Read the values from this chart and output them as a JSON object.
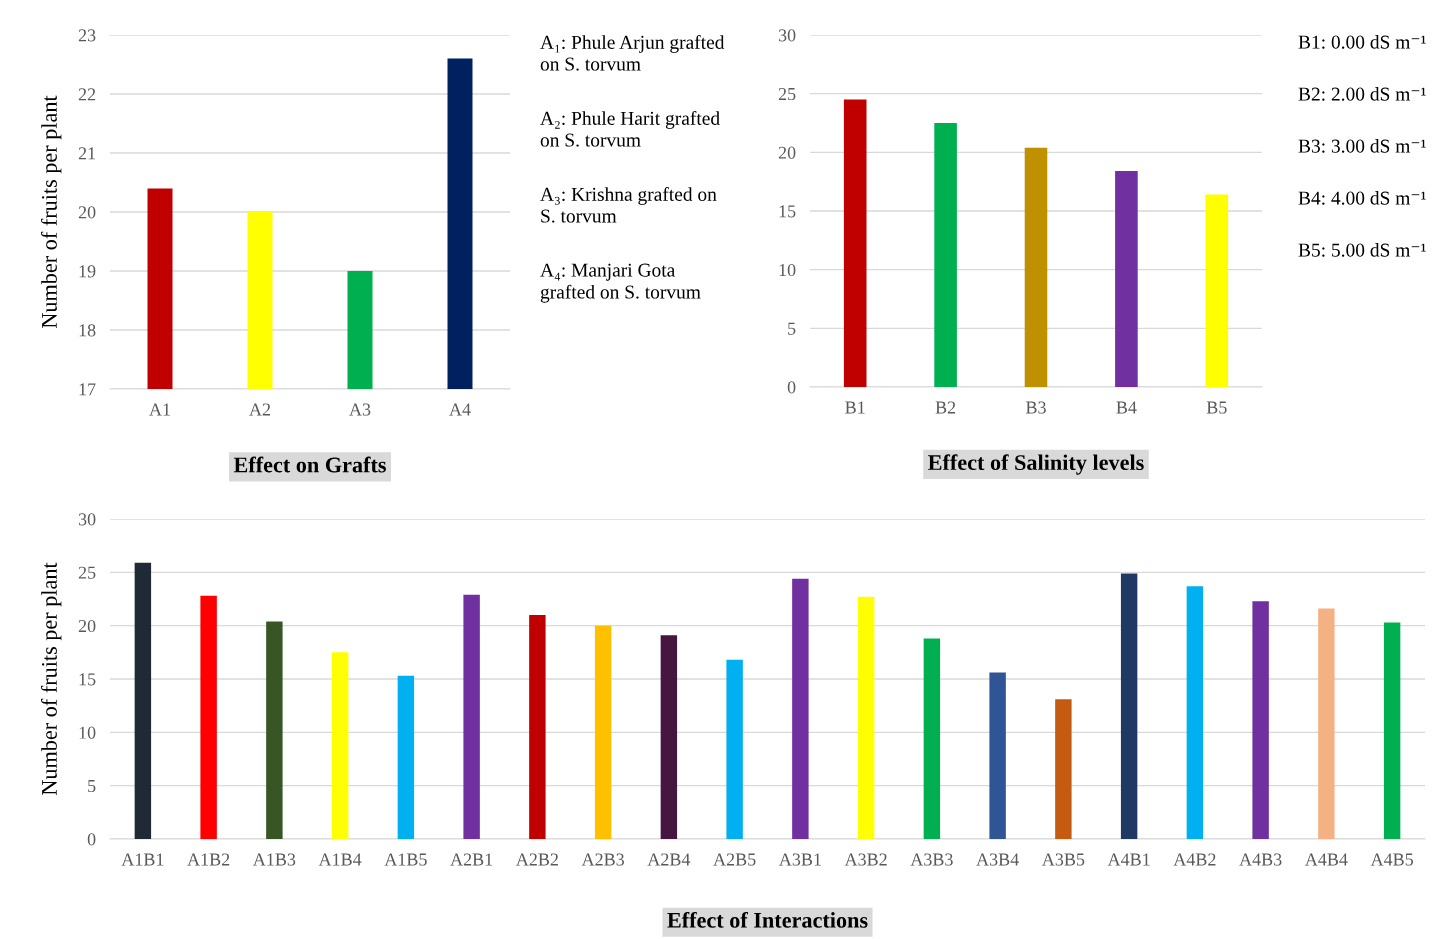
{
  "chart_data": [
    {
      "type": "bar",
      "title": "Effect on Grafts",
      "ylabel": "Number of fruits per plant",
      "categories": [
        "A1",
        "A2",
        "A3",
        "A4"
      ],
      "values": [
        20.4,
        20.0,
        19.0,
        22.6
      ],
      "colors": [
        "#c00000",
        "#ffff00",
        "#00b050",
        "#002060"
      ],
      "ylim": [
        17,
        23
      ],
      "yticks": [
        17,
        18,
        19,
        20,
        21,
        22,
        23
      ],
      "grid": "y",
      "annotations": [
        "A₁: Phule Arjun grafted\non S. torvum",
        "A₂: Phule Harit grafted\non S. torvum",
        "A₃: Krishna grafted on\nS. torvum",
        "A₄: Manjari Gota\ngrafted on S. torvum"
      ]
    },
    {
      "type": "bar",
      "title": "Effect of Salinity levels",
      "categories": [
        "B1",
        "B2",
        "B3",
        "B4",
        "B5"
      ],
      "values": [
        24.5,
        22.5,
        20.4,
        18.4,
        16.4
      ],
      "colors": [
        "#c00000",
        "#00b050",
        "#bf9000",
        "#7030a0",
        "#ffff00"
      ],
      "ylim": [
        0,
        30
      ],
      "yticks": [
        0,
        5,
        10,
        15,
        20,
        25,
        30
      ],
      "grid": "y",
      "annotations": [
        "B1: 0.00 dS m⁻¹",
        "B2: 2.00 dS m⁻¹",
        "B3: 3.00 dS m⁻¹",
        "B4: 4.00 dS m⁻¹",
        "B5: 5.00 dS m⁻¹"
      ]
    },
    {
      "type": "bar",
      "title": "Effect of Interactions",
      "ylabel": "Number of fruits per plant",
      "categories": [
        "A1B1",
        "A1B2",
        "A1B3",
        "A1B4",
        "A1B5",
        "A2B1",
        "A2B2",
        "A2B3",
        "A2B4",
        "A2B5",
        "A3B1",
        "A3B2",
        "A3B3",
        "A3B4",
        "A3B5",
        "A4B1",
        "A4B2",
        "A4B3",
        "A4B4",
        "A4B5"
      ],
      "values": [
        25.9,
        22.8,
        20.4,
        17.5,
        15.3,
        22.9,
        21.0,
        20.0,
        19.1,
        16.8,
        24.4,
        22.7,
        18.8,
        15.6,
        13.1,
        24.9,
        23.7,
        22.3,
        21.6,
        20.3
      ],
      "colors": [
        "#1f2a36",
        "#ff0000",
        "#375623",
        "#ffff00",
        "#00b0f0",
        "#7030a0",
        "#c00000",
        "#ffc000",
        "#45163f",
        "#00b0f0",
        "#7030a0",
        "#ffff00",
        "#00b050",
        "#2f5597",
        "#c55a11",
        "#1f3864",
        "#00b0f0",
        "#7030a0",
        "#f4b183",
        "#00b050"
      ],
      "ylim": [
        0,
        30
      ],
      "yticks": [
        0,
        5,
        10,
        15,
        20,
        25,
        30
      ],
      "grid": "y"
    }
  ]
}
